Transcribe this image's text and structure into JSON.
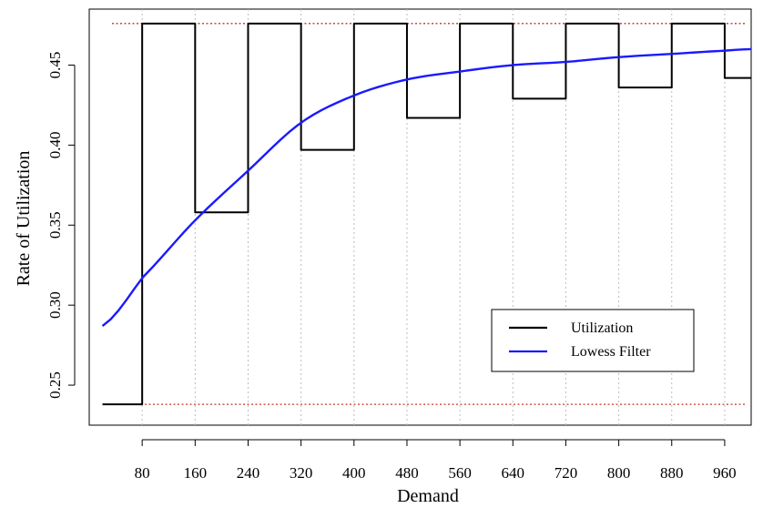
{
  "chart_data": {
    "type": "line",
    "title": "",
    "xlabel": "Demand",
    "ylabel": "Rate of Utilization",
    "xlim": [
      0,
      1000
    ],
    "ylim": [
      0.225,
      0.485
    ],
    "x_ticks": [
      80,
      160,
      240,
      320,
      400,
      480,
      560,
      640,
      720,
      800,
      880,
      960
    ],
    "y_ticks": [
      0.25,
      0.3,
      0.35,
      0.4,
      0.45
    ],
    "y_tick_labels": [
      "0.25",
      "0.30",
      "0.35",
      "0.40",
      "0.45"
    ],
    "grid": "vertical dotted at x ticks",
    "legend": {
      "position": "bottom-right"
    },
    "reference_lines": [
      0.238,
      0.476
    ],
    "series": [
      {
        "name": "Utilization",
        "color": "#000000",
        "kind": "step",
        "x": [
          20,
          80,
          80,
          160,
          160,
          240,
          240,
          320,
          320,
          400,
          400,
          480,
          480,
          560,
          560,
          640,
          640,
          720,
          720,
          800,
          800,
          880,
          880,
          960,
          960,
          1000
        ],
        "y": [
          0.238,
          0.238,
          0.476,
          0.476,
          0.358,
          0.358,
          0.476,
          0.476,
          0.397,
          0.397,
          0.476,
          0.476,
          0.417,
          0.417,
          0.476,
          0.476,
          0.429,
          0.429,
          0.476,
          0.476,
          0.436,
          0.436,
          0.476,
          0.476,
          0.442,
          0.442
        ]
      },
      {
        "name": "Lowess Filter",
        "color": "#1a1aff",
        "kind": "line",
        "x": [
          20,
          80,
          160,
          240,
          320,
          400,
          480,
          560,
          640,
          720,
          800,
          880,
          960,
          1000
        ],
        "y": [
          0.287,
          0.317,
          0.353,
          0.384,
          0.414,
          0.431,
          0.441,
          0.446,
          0.45,
          0.452,
          0.455,
          0.457,
          0.459,
          0.46
        ]
      }
    ]
  }
}
